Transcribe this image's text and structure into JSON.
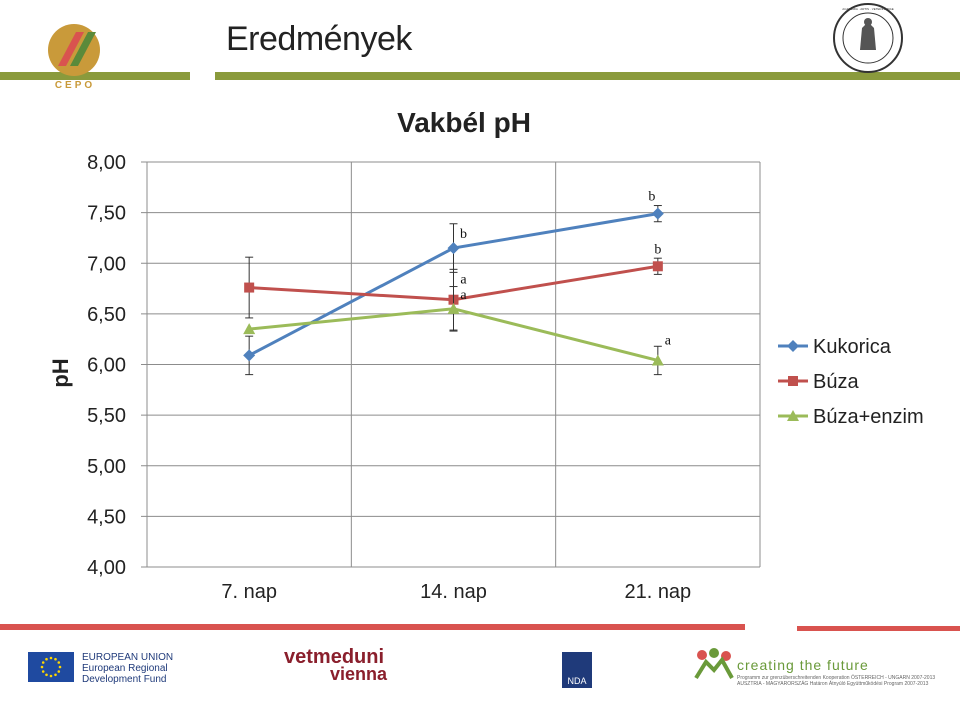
{
  "slide_title": "Eredmények",
  "logo_text": "CEPO",
  "seal_text": "ACADEMIA · ARTIS · VETERINARIAE",
  "chart_data": {
    "type": "line",
    "title": "Vakbél pH",
    "ylabel": "pH",
    "xlabel": "",
    "categories": [
      "7. nap",
      "14. nap",
      "21. nap"
    ],
    "ylim": [
      4.0,
      8.0
    ],
    "yticks": [
      "4,00",
      "4,50",
      "5,00",
      "5,50",
      "6,00",
      "6,50",
      "7,00",
      "7,50",
      "8,00"
    ],
    "ytick_values": [
      4.0,
      4.5,
      5.0,
      5.5,
      6.0,
      6.5,
      7.0,
      7.5,
      8.0
    ],
    "grid": true,
    "legend_position": "right",
    "series": [
      {
        "name": "Kukorica",
        "color": "#4f81bd",
        "marker": "diamond",
        "values": [
          6.09,
          7.15,
          7.49
        ],
        "errors": [
          0.19,
          0.24,
          0.08
        ],
        "labels": [
          "",
          "b",
          "b"
        ]
      },
      {
        "name": "Búza",
        "color": "#c0504d",
        "marker": "square",
        "values": [
          6.76,
          6.64,
          6.97
        ],
        "errors": [
          0.3,
          0.3,
          0.08
        ],
        "labels": [
          "",
          "a",
          "b"
        ]
      },
      {
        "name": "Búza+enzim",
        "color": "#9bbb59",
        "marker": "triangle",
        "values": [
          6.35,
          6.55,
          6.04
        ],
        "errors": [
          0,
          0.22,
          0.14
        ],
        "labels": [
          "",
          "a",
          "a"
        ]
      }
    ]
  },
  "footer": {
    "eu_line1": "EUROPEAN UNION",
    "eu_line2": "European Regional",
    "eu_line3": "Development Fund",
    "vetmed_line1": "vetmeduni",
    "vetmed_line2": "vienna",
    "nda": "NDA",
    "creating_future": "creating the future",
    "program_line1": "Programm zur grenzüberschreitenden Kooperation ÖSTERREICH - UNGARN 2007-2013",
    "program_line2": "AUSZTRIA - MAGYARORSZÁG Határon Átnyúló Együttműködési Program 2007-2013"
  }
}
